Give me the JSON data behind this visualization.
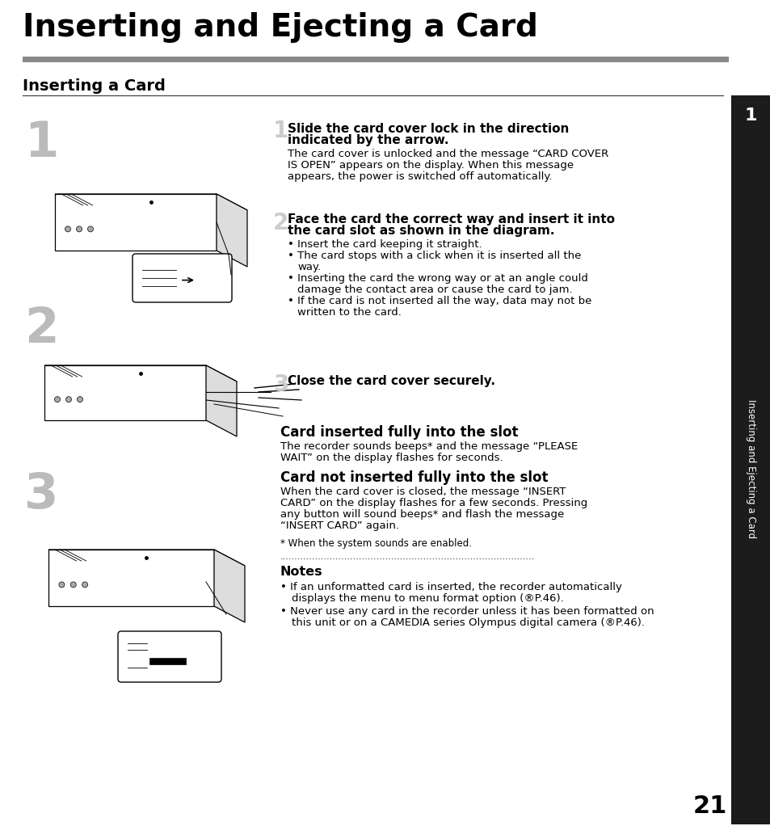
{
  "title": "Inserting and Ejecting a Card",
  "section_title": "Inserting a Card",
  "bg_color": "#ffffff",
  "gray_bar_color": "#888888",
  "sidebar_bg": "#1c1c1c",
  "sidebar_text": "Inserting and Ejecting a Card",
  "tab_number": "1",
  "page_number": "21",
  "step1_bold_line1": "Slide the card cover lock in the direction",
  "step1_bold_line2": "indicated by the arrow.",
  "step1_body": "The card cover is unlocked and the message “CARD COVER\nIS OPEN” appears on the display. When this message\nappears, the power is switched off automatically.",
  "step2_bold_line1": "Face the card the correct way and insert it into",
  "step2_bold_line2": "the card slot as shown in the diagram.",
  "step2_bullets": [
    [
      "Insert the card keeping it straight."
    ],
    [
      "The card stops with a click when it is inserted all the",
      "way."
    ],
    [
      "Inserting the card the wrong way or at an angle could",
      "damage the contact area or cause the card to jam."
    ],
    [
      "If the card is not inserted all the way, data may not be",
      "written to the card."
    ]
  ],
  "step3_bold": "Close the card cover securely.",
  "sec2_title": "Card inserted fully into the slot",
  "sec2_body": "The recorder sounds beeps* and the message “PLEASE\nWAIT” on the display flashes for seconds.",
  "sec3_title": "Card not inserted fully into the slot",
  "sec3_body": "When the card cover is closed, the message “INSERT\nCARD” on the display flashes for a few seconds. Pressing\nany button will sound beeps* and flash the message\n“INSERT CARD” again.",
  "footnote": "* When the system sounds are enabled.",
  "notes_title": "Notes",
  "note1": [
    "If an unformatted card is inserted, the recorder automatically",
    "displays the menu to menu format option (®P.46)."
  ],
  "note2": [
    "Never use any card in the recorder unless it has been formatted on",
    "this unit or on a CAMEDIA series Olympus digital camera (®P.46)."
  ]
}
